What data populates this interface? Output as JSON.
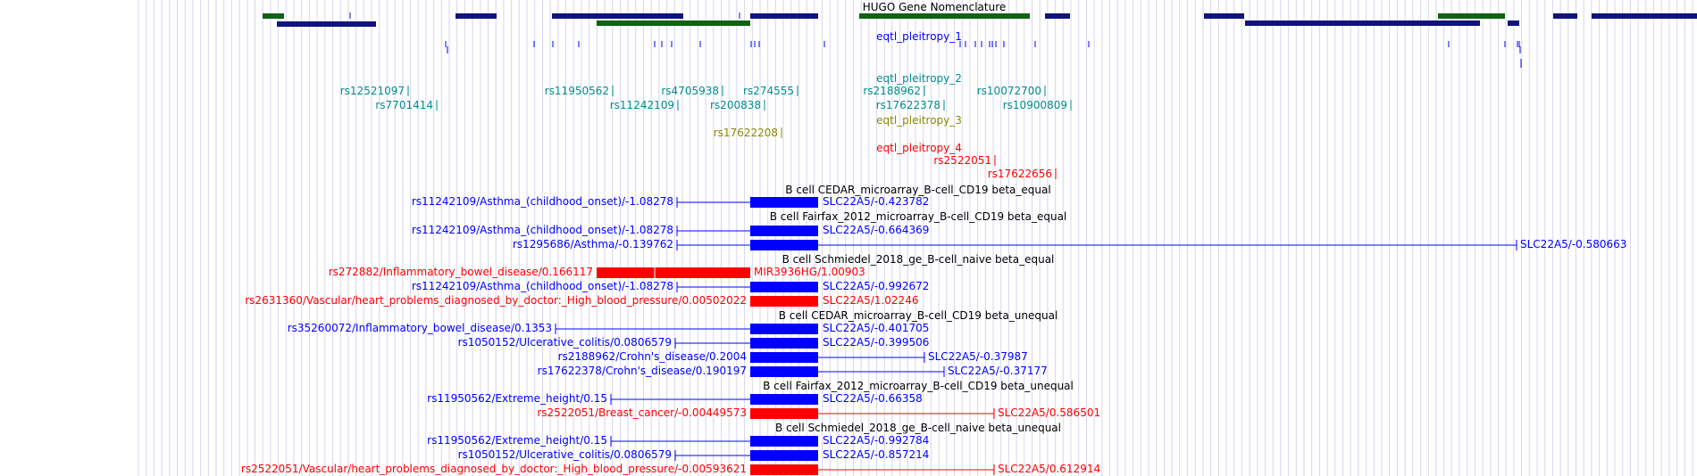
{
  "colors": {
    "navy": "#10147c",
    "green": "#0f6312",
    "blue": "#0000ff",
    "red": "#ff0000",
    "teal": "#008b8b",
    "olive": "#8b8b00",
    "grid": "#d6d6f0",
    "black": "#000000"
  },
  "gene_track": {
    "title": "HUGO Gene Nomenclature"
  },
  "snp_tracks": [
    {
      "label": "eqtl_pleitropy_1",
      "color": "blue"
    },
    {
      "label": "eqtl_pleitropy_2",
      "color": "teal"
    },
    {
      "label": "eqtl_pleitropy_3",
      "color": "olive"
    },
    {
      "label": "eqtl_pleitropy_4",
      "color": "red"
    }
  ],
  "snps": {
    "teal": [
      "rs12521097",
      "rs7701414",
      "rs11950562",
      "rs11242109",
      "rs4705938",
      "rs200838",
      "rs274555",
      "rs2188962",
      "rs17622378",
      "rs10072700",
      "rs10900809"
    ],
    "olive": [
      "rs17622208"
    ],
    "red": [
      "rs2522051",
      "rs17622656"
    ]
  },
  "panels": [
    {
      "title": "B cell CEDAR_microarray_B-cell_CD19 beta_equal",
      "rows": [
        {
          "left": "rs11242109/Asthma_(childhood_onset)/-1.08278",
          "right": "SLC22A5/-0.423782",
          "color": "blue"
        }
      ]
    },
    {
      "title": "B cell Fairfax_2012_microarray_B-cell_CD19 beta_equal",
      "rows": [
        {
          "left": "rs11242109/Asthma_(childhood_onset)/-1.08278",
          "right": "SLC22A5/-0.664369",
          "color": "blue"
        },
        {
          "left": "rs1295686/Asthma/-0.139762",
          "right": "SLC22A5/-0.580663",
          "color": "blue"
        }
      ]
    },
    {
      "title": "B cell Schmiedel_2018_ge_B-cell_naive beta_equal",
      "rows": [
        {
          "left": "rs272882/Inflammatory_bowel_disease/0.166117",
          "right": "MIR3936HG/1.00903",
          "color": "red"
        },
        {
          "left": "rs11242109/Asthma_(childhood_onset)/-1.08278",
          "right": "SLC22A5/-0.992672",
          "color": "blue"
        },
        {
          "left": "rs2631360/Vascular/heart_problems_diagnosed_by_doctor:_High_blood_pressure/0.00502022",
          "right": "SLC22A5/1.02246",
          "color": "red"
        }
      ]
    },
    {
      "title": "B cell CEDAR_microarray_B-cell_CD19 beta_unequal",
      "rows": [
        {
          "left": "rs35260072/Inflammatory_bowel_disease/0.1353",
          "right": "SLC22A5/-0.401705",
          "color": "blue"
        },
        {
          "left": "rs1050152/Ulcerative_colitis/0.0806579",
          "right": "SLC22A5/-0.399506",
          "color": "blue"
        },
        {
          "left": "rs2188962/Crohn's_disease/0.2004",
          "right": "SLC22A5/-0.37987",
          "color": "blue"
        },
        {
          "left": "rs17622378/Crohn's_disease/0.190197",
          "right": "SLC22A5/-0.37177",
          "color": "blue"
        }
      ]
    },
    {
      "title": "B cell Fairfax_2012_microarray_B-cell_CD19 beta_unequal",
      "rows": [
        {
          "left": "rs11950562/Extreme_height/0.15",
          "right": "SLC22A5/-0.66358",
          "color": "blue"
        },
        {
          "left": "rs2522051/Breast_cancer/-0.00449573",
          "right": "SLC22A5/0.586501",
          "color": "red"
        }
      ]
    },
    {
      "title": "B cell Schmiedel_2018_ge_B-cell_naive beta_unequal",
      "rows": [
        {
          "left": "rs11950562/Extreme_height/0.15",
          "right": "SLC22A5/-0.992784",
          "color": "blue"
        },
        {
          "left": "rs1050152/Ulcerative_colitis/0.0806579",
          "right": "SLC22A5/-0.857214",
          "color": "blue"
        },
        {
          "left": "rs2522051/Vascular/heart_problems_diagnosed_by_doctor:_High_blood_pressure/-0.00593621",
          "right": "SLC22A5/0.612914",
          "color": "red"
        }
      ]
    }
  ]
}
